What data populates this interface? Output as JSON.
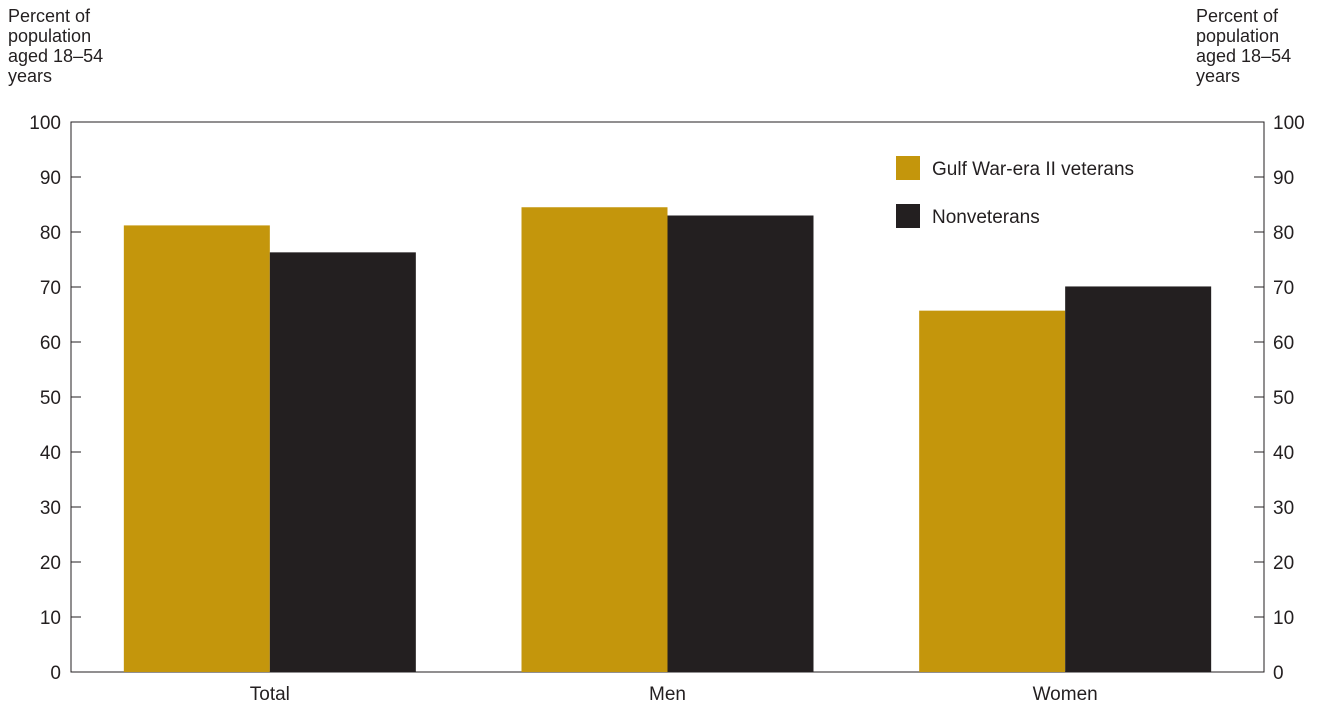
{
  "chart_data": {
    "type": "bar",
    "title": "",
    "ylabel": "Percent of\npopulation\naged 18–54\nyears",
    "ylabel_right": "Percent of\npopulation\naged 18–54\nyears",
    "ylim": [
      0,
      100
    ],
    "yticks": [
      0,
      10,
      20,
      30,
      40,
      50,
      60,
      70,
      80,
      90,
      100
    ],
    "categories": [
      "Total",
      "Men",
      "Women"
    ],
    "series": [
      {
        "name": "Gulf War-era II veterans",
        "color": "#c4960c",
        "values": [
          81.2,
          84.5,
          65.7
        ]
      },
      {
        "name": "Nonveterans",
        "color": "#231f20",
        "values": [
          76.3,
          83.0,
          70.1
        ]
      }
    ],
    "legend_position": "top-right",
    "grid": false
  }
}
